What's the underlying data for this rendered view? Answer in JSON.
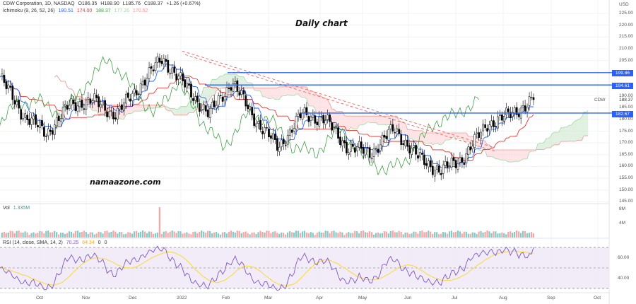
{
  "header": {
    "symbol_line": "CDW Corporation, 1D, NASDAQ",
    "ohlc": {
      "open": "O186.35",
      "high": "H188.90",
      "low": "L185.76",
      "close": "C188.37",
      "change": "+1.26 (+0.67%)"
    },
    "ichimoku": {
      "label": "Ichimoku (9, 26, 52, 26)",
      "v1": "180.51",
      "v2": "174.00",
      "v3": "188.37",
      "v4": "177.26",
      "v5": "170.52"
    },
    "ichimoku_colors": [
      "#2962ff",
      "#e53935",
      "#43a047",
      "#a5d6a7",
      "#ef9a9a"
    ]
  },
  "overlays": {
    "title": "Daily chart",
    "watermark": "namaazone.com"
  },
  "price_axis": {
    "currency": "USD",
    "ticks": [
      "225.00",
      "220.00",
      "215.00",
      "210.00",
      "205.00",
      "190.00",
      "185.00",
      "180.00",
      "175.00",
      "170.00",
      "165.00",
      "160.00",
      "155.00",
      "150.00",
      "145.00"
    ],
    "symbol_tag": "CDW",
    "last_price": "188.37",
    "levels": [
      "199.86",
      "194.61",
      "182.67"
    ]
  },
  "volume": {
    "label": "Vol",
    "value": "1.335M",
    "ticks": [
      "8M",
      "4M"
    ]
  },
  "rsi": {
    "label": "RSI (14, close, SMA, 14, 2)",
    "value": "70.25",
    "sma": "64.34",
    "extra1": "0",
    "extra2": "0",
    "ticks": [
      "60.00",
      "40.00"
    ]
  },
  "time_axis": {
    "labels": [
      "Oct",
      "Nov",
      "Dec",
      "2022",
      "Feb",
      "Mar",
      "Apr",
      "May",
      "Jun",
      "Jul",
      "Aug",
      "Sep",
      "Oct"
    ]
  },
  "colors": {
    "up": "#26a69a",
    "down": "#ef5350",
    "level_line": "#2962ff",
    "tenkan": "#2962ff",
    "kijun": "#e53935",
    "chikou": "#43a047",
    "rsi": "#7e57c2",
    "rsi_sma": "#fdd835",
    "rsi_band": "#ede7f6"
  },
  "chart_data": {
    "type": "candlestick",
    "title": "Daily chart",
    "instrument": "CDW Corporation, 1D, NASDAQ",
    "x_labels": [
      "Oct",
      "Nov",
      "Dec",
      "2022",
      "Feb",
      "Mar",
      "Apr",
      "May",
      "Jun",
      "Jul",
      "Aug",
      "Sep",
      "Oct"
    ],
    "ylim": [
      145,
      228
    ],
    "ohlc_last": {
      "open": 186.35,
      "high": 188.9,
      "low": 185.76,
      "close": 188.37,
      "change": 1.26,
      "change_pct": 0.67
    },
    "horizontal_levels": [
      199.86,
      194.61,
      182.67
    ],
    "trendline": {
      "from": {
        "x": "Dec end",
        "y": 209
      },
      "to": {
        "x": "Aug",
        "y": 168
      },
      "style": "dashed",
      "color": "#ef5350"
    },
    "close_series_approx": [
      {
        "x": "Sep",
        "y": 198
      },
      {
        "x": "Oct",
        "y": 182
      },
      {
        "x": "Oct mid",
        "y": 174
      },
      {
        "x": "Nov",
        "y": 186
      },
      {
        "x": "Nov mid",
        "y": 188
      },
      {
        "x": "Dec",
        "y": 182
      },
      {
        "x": "Dec mid",
        "y": 194
      },
      {
        "x": "2022",
        "y": 206
      },
      {
        "x": "Jan mid",
        "y": 194
      },
      {
        "x": "Feb",
        "y": 182
      },
      {
        "x": "Feb mid",
        "y": 196
      },
      {
        "x": "Mar",
        "y": 180
      },
      {
        "x": "Mar mid",
        "y": 168
      },
      {
        "x": "Apr",
        "y": 182
      },
      {
        "x": "Apr mid",
        "y": 180
      },
      {
        "x": "May",
        "y": 168
      },
      {
        "x": "May mid",
        "y": 166
      },
      {
        "x": "Jun",
        "y": 176
      },
      {
        "x": "Jun mid",
        "y": 164
      },
      {
        "x": "Jul",
        "y": 158
      },
      {
        "x": "Jul mid",
        "y": 164
      },
      {
        "x": "Aug",
        "y": 178
      },
      {
        "x": "Aug mid",
        "y": 182
      },
      {
        "x": "Aug end",
        "y": 188.37
      }
    ],
    "indicators": {
      "ichimoku": {
        "tenkan": 180.51,
        "kijun": 174.0,
        "chikou": 188.37,
        "span_a": 177.26,
        "span_b": 170.52
      },
      "volume": {
        "last": "1.335M",
        "ylim": [
          0,
          8000000
        ],
        "spike": {
          "x": "Dec mid",
          "value": "~8M"
        }
      },
      "rsi": {
        "value": 70.25,
        "sma": 64.34,
        "bands": [
          30,
          70
        ],
        "mid": 50
      }
    }
  }
}
